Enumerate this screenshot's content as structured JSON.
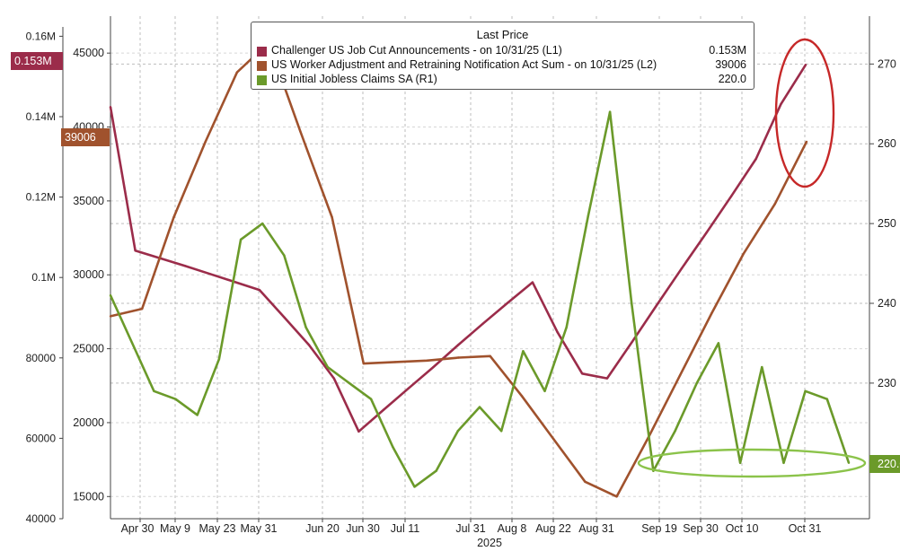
{
  "chart_data": {
    "type": "line",
    "title": "Last Price",
    "year_label": "2025",
    "x_ticks": [
      "Apr 30",
      "May 9",
      "May 23",
      "May 31",
      "Jun 20",
      "Jun 30",
      "Jul 11",
      "Jul 31",
      "Aug 8",
      "Aug 22",
      "Aug 31",
      "Sep 19",
      "Sep 30",
      "Oct 10",
      "Oct 31"
    ],
    "axes": {
      "L1": {
        "side": "left",
        "range": [
          0.04,
          0.165
        ],
        "ticks": [
          {
            "v": 0.16,
            "label": "0.16M"
          },
          {
            "v": 0.14,
            "label": "0.14M"
          },
          {
            "v": 0.12,
            "label": "0.12M"
          },
          {
            "v": 0.1,
            "label": "0.1M"
          },
          {
            "v": 0.08,
            "label": "80000"
          },
          {
            "v": 0.06,
            "label": "60000"
          },
          {
            "v": 0.04,
            "label": "40000"
          }
        ]
      },
      "L2": {
        "side": "left",
        "range": [
          13500,
          47500
        ],
        "ticks": [
          {
            "v": 45000,
            "label": "45000"
          },
          {
            "v": 40000,
            "label": "40000"
          },
          {
            "v": 35000,
            "label": "35000"
          },
          {
            "v": 30000,
            "label": "30000"
          },
          {
            "v": 25000,
            "label": "25000"
          },
          {
            "v": 20000,
            "label": "20000"
          },
          {
            "v": 15000,
            "label": "15000"
          }
        ]
      },
      "R1": {
        "side": "right",
        "range": [
          213,
          276
        ],
        "ticks": [
          {
            "v": 270,
            "label": "270"
          },
          {
            "v": 260,
            "label": "260"
          },
          {
            "v": 250,
            "label": "250"
          },
          {
            "v": 240,
            "label": "240"
          },
          {
            "v": 230,
            "label": "230"
          }
        ]
      }
    },
    "series": [
      {
        "name": "Challenger US Job Cut Announcements -  on 10/31/25  (L1)",
        "axis": "L1",
        "color": "#9b2c4a",
        "last": "0.153M",
        "points": [
          [
            0,
            0.1424
          ],
          [
            1,
            0.1067
          ],
          [
            2,
            0.1048
          ],
          [
            3,
            0.1029
          ],
          [
            4,
            0.1009
          ],
          [
            5,
            0.0989
          ],
          [
            6,
            0.0969
          ],
          [
            7,
            0.0901
          ],
          [
            8,
            0.0832
          ],
          [
            9,
            0.0749
          ],
          [
            10,
            0.0617
          ],
          [
            11,
            0.0671
          ],
          [
            12,
            0.0724
          ],
          [
            13,
            0.0777
          ],
          [
            14,
            0.0832
          ],
          [
            15,
            0.0885
          ],
          [
            16,
            0.0937
          ],
          [
            17,
            0.0988
          ],
          [
            18,
            0.0864
          ],
          [
            19,
            0.0761
          ],
          [
            20,
            0.0749
          ],
          [
            21,
            0.0839
          ],
          [
            22,
            0.0931
          ],
          [
            23,
            0.1022
          ],
          [
            24,
            0.1111
          ],
          [
            25,
            0.1202
          ],
          [
            26,
            0.1295
          ],
          [
            27,
            0.1431
          ],
          [
            28,
            0.1529
          ]
        ]
      },
      {
        "name": "US Worker Adjustment and Retraining Notification Act Sum -  on 10/31/25  (L2)",
        "axis": "L2",
        "color": "#a0522d",
        "last": "39006",
        "points": [
          [
            0,
            27200
          ],
          [
            1,
            27700
          ],
          [
            2,
            33900
          ],
          [
            3,
            39000
          ],
          [
            4,
            43700
          ],
          [
            5,
            45700
          ],
          [
            6,
            39700
          ],
          [
            7,
            33900
          ],
          [
            8,
            24000
          ],
          [
            9,
            24100
          ],
          [
            10,
            24200
          ],
          [
            11,
            24400
          ],
          [
            12,
            24500
          ],
          [
            13,
            21800
          ],
          [
            14,
            18900
          ],
          [
            15,
            16000
          ],
          [
            16,
            15000
          ],
          [
            17,
            19000
          ],
          [
            18,
            23200
          ],
          [
            19,
            27400
          ],
          [
            20,
            31400
          ],
          [
            21,
            34800
          ],
          [
            22,
            39006
          ]
        ]
      },
      {
        "name": "US Initial Jobless Claims SA  (R1)",
        "axis": "R1",
        "color": "#6b9a2a",
        "last": "220.0",
        "points": [
          [
            0,
            241
          ],
          [
            1,
            235
          ],
          [
            2,
            229
          ],
          [
            3,
            228
          ],
          [
            4,
            226
          ],
          [
            5,
            233
          ],
          [
            6,
            248
          ],
          [
            7,
            250
          ],
          [
            8,
            246
          ],
          [
            9,
            237
          ],
          [
            10,
            232
          ],
          [
            11,
            230
          ],
          [
            12,
            228
          ],
          [
            13,
            222
          ],
          [
            14,
            217
          ],
          [
            15,
            219
          ],
          [
            16,
            224
          ],
          [
            17,
            227
          ],
          [
            18,
            224
          ],
          [
            19,
            234
          ],
          [
            20,
            229
          ],
          [
            21,
            237
          ],
          [
            22,
            251
          ],
          [
            23,
            264
          ],
          [
            24,
            240
          ],
          [
            25,
            219
          ],
          [
            26,
            224
          ],
          [
            27,
            230
          ],
          [
            28,
            235
          ],
          [
            29,
            220
          ],
          [
            30,
            232
          ],
          [
            31,
            220
          ],
          [
            32,
            229
          ],
          [
            33,
            228
          ],
          [
            34,
            220
          ]
        ]
      }
    ],
    "last_value_labels": {
      "L1": "0.153M",
      "L2": "39006",
      "R1": "220.0"
    }
  }
}
